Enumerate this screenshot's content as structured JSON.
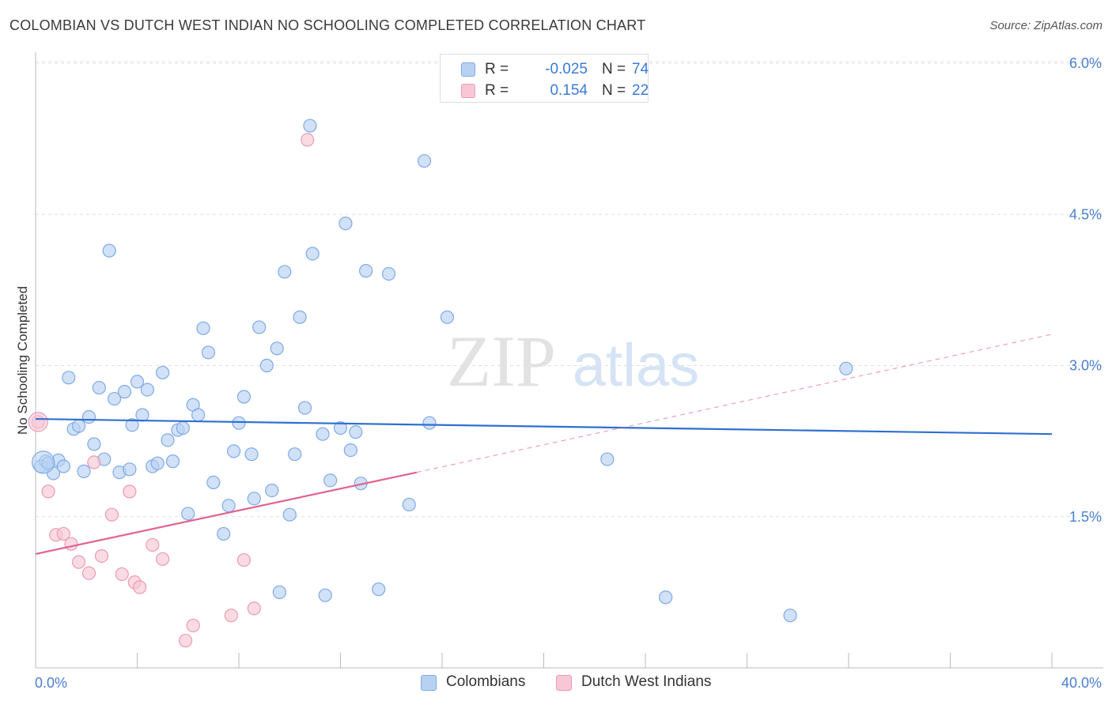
{
  "header": {
    "title": "COLOMBIAN VS DUTCH WEST INDIAN NO SCHOOLING COMPLETED CORRELATION CHART",
    "source": "Source: ZipAtlas.com"
  },
  "watermark": {
    "zip": "ZIP",
    "atlas": "atlas"
  },
  "legend_stats": [
    {
      "r_label": "R =",
      "r_value": "-0.025",
      "n_label": "N =",
      "n_value": "74"
    },
    {
      "r_label": "R =",
      "r_value": "0.154",
      "n_label": "N =",
      "n_value": "22"
    }
  ],
  "colors": {
    "blue_fill": "#b8d1f3",
    "blue_stroke": "#7eaae6",
    "blue_line": "#2f6fd1",
    "pink_fill": "#f7c7d6",
    "pink_stroke": "#ec9ab3",
    "pink_line": "#e0648e",
    "grid": "#e0e0e0",
    "tick_text": "#4a7fd0"
  },
  "chart_data": {
    "type": "scatter",
    "title": "COLOMBIAN VS DUTCH WEST INDIAN NO SCHOOLING COMPLETED CORRELATION CHART",
    "xlabel": "",
    "ylabel": "No Schooling Completed",
    "xlim": [
      0,
      40
    ],
    "ylim": [
      0,
      6.2
    ],
    "x_tick_labels": [
      "0.0%",
      "40.0%"
    ],
    "y_ticks": [
      1.5,
      3.0,
      4.5,
      6.0
    ],
    "y_tick_labels": [
      "1.5%",
      "3.0%",
      "4.5%",
      "6.0%"
    ],
    "grid": true,
    "legend_position": "top-center",
    "series": [
      {
        "name": "Colombians",
        "color": "#7eaae6",
        "r": -0.025,
        "n": 74,
        "trend": {
          "x": [
            0,
            40
          ],
          "y": [
            2.47,
            2.32
          ],
          "style": "solid"
        },
        "points": [
          [
            0.2,
            2.0
          ],
          [
            0.4,
            2.05
          ],
          [
            0.5,
            2.03
          ],
          [
            0.7,
            1.93
          ],
          [
            0.9,
            2.06
          ],
          [
            1.1,
            2.0
          ],
          [
            1.3,
            2.88
          ],
          [
            1.5,
            2.37
          ],
          [
            1.7,
            2.4
          ],
          [
            1.9,
            1.95
          ],
          [
            2.1,
            2.49
          ],
          [
            2.3,
            2.22
          ],
          [
            2.5,
            2.78
          ],
          [
            2.7,
            2.07
          ],
          [
            2.9,
            4.14
          ],
          [
            3.1,
            2.67
          ],
          [
            3.3,
            1.94
          ],
          [
            3.5,
            2.74
          ],
          [
            3.7,
            1.97
          ],
          [
            3.8,
            2.41
          ],
          [
            4.0,
            2.84
          ],
          [
            4.2,
            2.51
          ],
          [
            4.4,
            2.76
          ],
          [
            4.6,
            2.0
          ],
          [
            4.8,
            2.03
          ],
          [
            5.0,
            2.93
          ],
          [
            5.2,
            2.26
          ],
          [
            5.4,
            2.05
          ],
          [
            5.6,
            2.36
          ],
          [
            5.8,
            2.38
          ],
          [
            6.0,
            1.53
          ],
          [
            6.2,
            2.61
          ],
          [
            6.4,
            2.51
          ],
          [
            6.6,
            3.37
          ],
          [
            6.8,
            3.13
          ],
          [
            7.0,
            1.84
          ],
          [
            7.4,
            1.33
          ],
          [
            7.6,
            1.61
          ],
          [
            7.8,
            2.15
          ],
          [
            8.0,
            2.43
          ],
          [
            8.2,
            2.69
          ],
          [
            8.5,
            2.12
          ],
          [
            8.6,
            1.68
          ],
          [
            8.8,
            3.38
          ],
          [
            9.1,
            3.0
          ],
          [
            9.3,
            1.76
          ],
          [
            9.5,
            3.17
          ],
          [
            9.6,
            0.75
          ],
          [
            9.8,
            3.93
          ],
          [
            10.0,
            1.52
          ],
          [
            10.2,
            2.12
          ],
          [
            10.4,
            3.48
          ],
          [
            10.6,
            2.58
          ],
          [
            10.8,
            5.38
          ],
          [
            10.9,
            4.11
          ],
          [
            11.3,
            2.32
          ],
          [
            11.4,
            0.72
          ],
          [
            11.6,
            1.86
          ],
          [
            12.0,
            2.38
          ],
          [
            12.2,
            4.41
          ],
          [
            12.4,
            2.16
          ],
          [
            12.6,
            2.34
          ],
          [
            12.8,
            1.83
          ],
          [
            13.0,
            3.94
          ],
          [
            13.5,
            0.78
          ],
          [
            13.9,
            3.91
          ],
          [
            14.7,
            1.62
          ],
          [
            15.3,
            5.03
          ],
          [
            15.5,
            2.43
          ],
          [
            16.2,
            3.48
          ],
          [
            22.5,
            2.07
          ],
          [
            24.8,
            0.7
          ],
          [
            29.7,
            0.52
          ],
          [
            31.9,
            2.97
          ]
        ]
      },
      {
        "name": "Dutch West Indians",
        "color": "#ec9ab3",
        "r": 0.154,
        "n": 22,
        "trend": {
          "x": [
            0,
            15
          ],
          "y": [
            1.13,
            1.94
          ],
          "style": "solid",
          "extended": {
            "x": [
              15,
              40
            ],
            "y": [
              1.94,
              3.31
            ],
            "style": "dashed"
          }
        },
        "points": [
          [
            0.1,
            2.44
          ],
          [
            0.5,
            1.75
          ],
          [
            0.8,
            1.32
          ],
          [
            1.1,
            1.33
          ],
          [
            1.4,
            1.23
          ],
          [
            1.7,
            1.05
          ],
          [
            2.1,
            0.94
          ],
          [
            2.3,
            2.04
          ],
          [
            2.6,
            1.11
          ],
          [
            3.0,
            1.52
          ],
          [
            3.4,
            0.93
          ],
          [
            3.7,
            1.75
          ],
          [
            3.9,
            0.85
          ],
          [
            4.1,
            0.8
          ],
          [
            4.6,
            1.22
          ],
          [
            5.0,
            1.08
          ],
          [
            5.9,
            0.27
          ],
          [
            6.2,
            0.42
          ],
          [
            7.7,
            0.52
          ],
          [
            8.2,
            1.07
          ],
          [
            8.6,
            0.59
          ],
          [
            10.7,
            5.24
          ]
        ]
      }
    ]
  }
}
